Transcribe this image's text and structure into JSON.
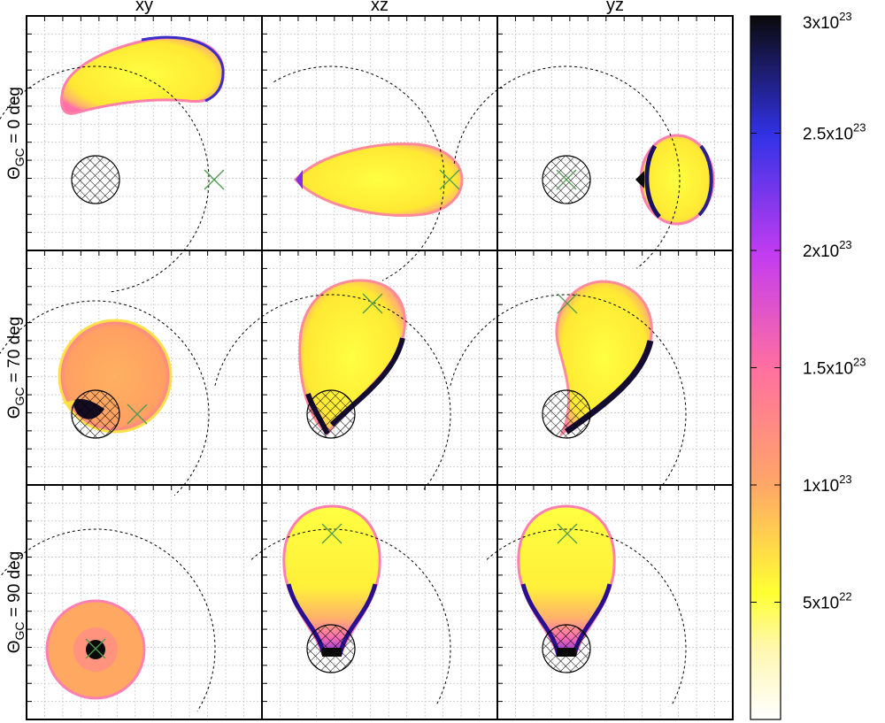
{
  "chart_data": {
    "type": "heatmap",
    "grid": true,
    "column_labels": [
      "xy",
      "xz",
      "yz"
    ],
    "row_labels": [
      {
        "symbol": "Θ",
        "sub": "GC",
        "rest": " = 0 deg"
      },
      {
        "symbol": "Θ",
        "sub": "GC",
        "rest": " = 70 deg"
      },
      {
        "symbol": "Θ",
        "sub": "GC",
        "rest": " = 90 deg"
      }
    ],
    "colorbar": {
      "range": [
        0,
        3e+23
      ],
      "stops": [
        {
          "v": 0.0,
          "c": "#ffffff"
        },
        {
          "v": 0.1,
          "c": "#fff7b0"
        },
        {
          "v": 0.18,
          "c": "#ffff33"
        },
        {
          "v": 0.33,
          "c": "#ffa866"
        },
        {
          "v": 0.5,
          "c": "#ff6fa0"
        },
        {
          "v": 0.66,
          "c": "#c33cf0"
        },
        {
          "v": 0.83,
          "c": "#3232e6"
        },
        {
          "v": 1.0,
          "c": "#0a0a0a"
        }
      ],
      "ticks": [
        {
          "value": 5e+22,
          "mant": "5x10",
          "exp": "22"
        },
        {
          "value": 1e+23,
          "mant": "1x10",
          "exp": "23"
        },
        {
          "value": 1.5e+23,
          "mant": "1.5x10",
          "exp": "23"
        },
        {
          "value": 2e+23,
          "mant": "2x10",
          "exp": "23"
        },
        {
          "value": 2.5e+23,
          "mant": "2.5x10",
          "exp": "23"
        },
        {
          "value": 3e+23,
          "mant": "3x10",
          "exp": "23"
        }
      ]
    },
    "colors": {
      "body_fill": "#ffff44",
      "mid": "#ffae60",
      "edge_pink": "#ff60b0",
      "edge_purple": "#8a2be2",
      "edge_dark": "#1a1060",
      "marker": "#4f9a4f"
    }
  }
}
